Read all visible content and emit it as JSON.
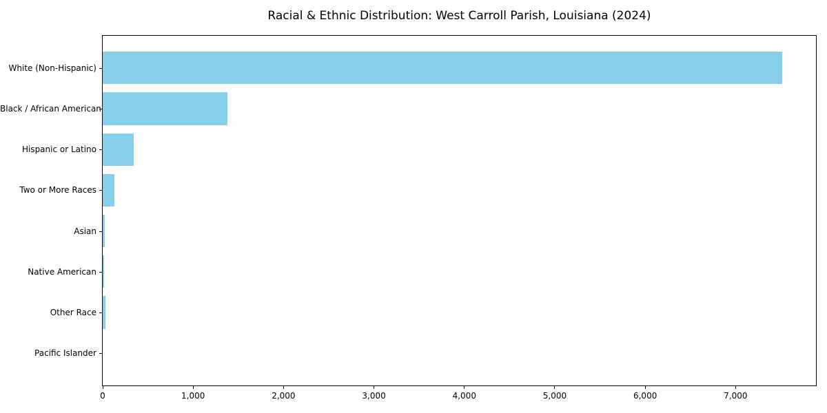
{
  "title": "Racial & Ethnic Distribution: West Carroll Parish, Louisiana (2024)",
  "chart_data": {
    "type": "bar",
    "orientation": "horizontal",
    "title": "Racial & Ethnic Distribution: West Carroll Parish, Louisiana (2024)",
    "categories": [
      "White (Non-Hispanic)",
      "Black / African American",
      "Hispanic or Latino",
      "Two or More Races",
      "Asian",
      "Native American",
      "Other Race",
      "Pacific Islander"
    ],
    "values": [
      7513,
      1377,
      345,
      127,
      22,
      18,
      27,
      0
    ],
    "xlabel": "",
    "ylabel": "",
    "xlim": [
      0,
      7889
    ],
    "x_ticks": [
      0,
      1000,
      2000,
      3000,
      4000,
      5000,
      6000,
      7000
    ],
    "x_tick_labels": [
      "0",
      "1,000",
      "2,000",
      "3,000",
      "4,000",
      "5,000",
      "6,000",
      "7,000"
    ],
    "bar_color": "#87CEEB",
    "axis_color": "#000000",
    "background_color": "#FFFFFF",
    "grid": false,
    "legend": null
  }
}
